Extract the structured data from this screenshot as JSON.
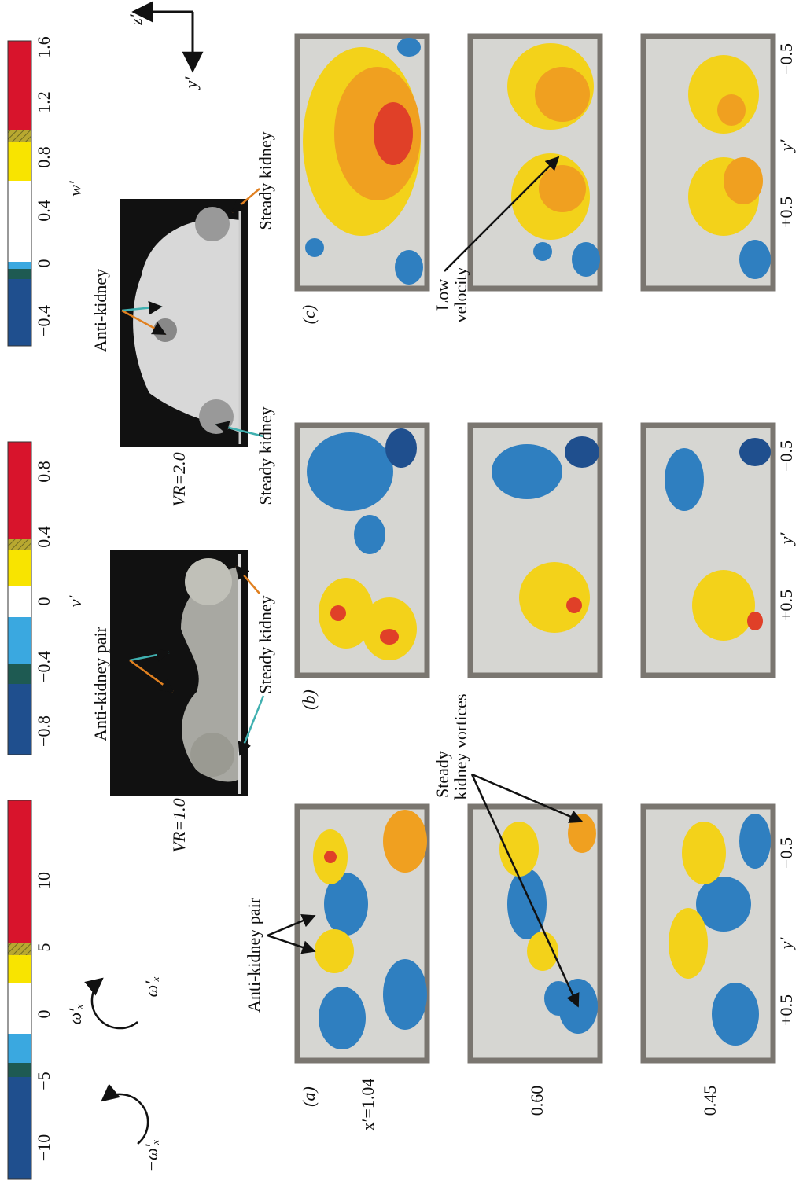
{
  "colorbars": [
    {
      "label": "ω′ₓ",
      "ticks": [
        "−10",
        "−5",
        "0",
        "5",
        "10"
      ]
    },
    {
      "label": "v′",
      "ticks": [
        "−0.8",
        "−0.4",
        "0",
        "0.4",
        "0.8"
      ]
    },
    {
      "label": "w′",
      "ticks": [
        "−0.4",
        "0",
        "0.4",
        "0.8",
        "1.2",
        "1.6"
      ]
    }
  ],
  "rotation": [
    "−ω′ₓ",
    "ω′ₓ"
  ],
  "images": [
    {
      "label": "VR=1.0",
      "annotations": [
        "Anti-kidney pair",
        "Steady kidney"
      ]
    },
    {
      "label": "VR=2.0",
      "annotations": [
        "Anti-kidney",
        "Steady kidney",
        "Steady kidney"
      ]
    }
  ],
  "axes": [
    "z′",
    "y′"
  ],
  "panels": [
    {
      "label": "(a)",
      "rows": [
        "x′=1.04",
        "0.60",
        "0.45"
      ],
      "ticks": [
        "+0.5",
        "y′",
        "−0.5"
      ],
      "annotations": [
        "Anti-kidney pair",
        [
          "Steady",
          "kidney vortices"
        ]
      ]
    },
    {
      "label": "(b)",
      "ticks": [
        "+0.5",
        "y′",
        "−0.5"
      ]
    },
    {
      "label": "(c)",
      "ticks": [
        "+0.5",
        "y′",
        "−0.5"
      ],
      "annotations": [
        [
          "Low",
          "velocity"
        ]
      ]
    }
  ]
}
